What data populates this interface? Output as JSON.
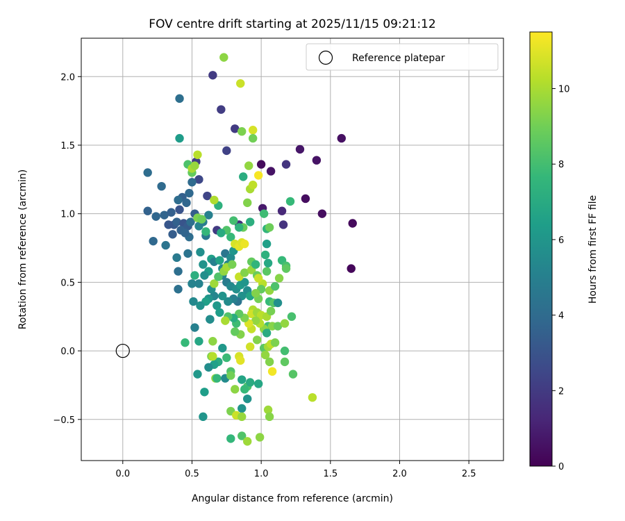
{
  "chart_data": {
    "type": "scatter",
    "title": "FOV centre drift starting at 2025/11/15 09:21:12",
    "xlabel": "Angular distance from reference (arcmin)",
    "ylabel": "Rotation from reference (arcmin)",
    "xlim": [
      -0.3,
      2.75
    ],
    "ylim": [
      -0.8,
      2.28
    ],
    "xticks": [
      0.0,
      0.5,
      1.0,
      1.5,
      2.0,
      2.5
    ],
    "xtick_labels": [
      "0.0",
      "0.5",
      "1.0",
      "1.5",
      "2.0",
      "2.5"
    ],
    "yticks": [
      -0.5,
      0.0,
      0.5,
      1.0,
      1.5,
      2.0
    ],
    "ytick_labels": [
      "−0.5",
      "0.0",
      "0.5",
      "1.0",
      "1.5",
      "2.0"
    ],
    "grid": true,
    "legend": {
      "placement": "top-right",
      "entries": [
        {
          "label": "Reference platepar",
          "marker": "hollow-circle",
          "color": "#000000"
        }
      ]
    },
    "reference_point": {
      "x": 0.0,
      "y": 0.0
    },
    "colorbar": {
      "label": "Hours from first FF file",
      "range": [
        0,
        11.5
      ],
      "ticks": [
        0,
        2,
        4,
        6,
        8,
        10
      ],
      "tick_labels": [
        "0",
        "2",
        "4",
        "6",
        "8",
        "10"
      ],
      "colormap": "viridis",
      "stops": [
        "#440154",
        "#482878",
        "#3e4989",
        "#31688e",
        "#26828e",
        "#1f9e89",
        "#35b779",
        "#6ece58",
        "#b5de2b",
        "#fde725"
      ]
    },
    "points": [
      [
        1.58,
        1.55,
        0.5
      ],
      [
        1.66,
        0.93,
        0.3
      ],
      [
        1.65,
        0.6,
        0.2
      ],
      [
        1.44,
        1.0,
        0.4
      ],
      [
        1.4,
        1.39,
        0.6
      ],
      [
        1.32,
        1.11,
        0.4
      ],
      [
        1.28,
        1.47,
        0.7
      ],
      [
        1.0,
        1.36,
        0.3
      ],
      [
        1.07,
        1.31,
        0.6
      ],
      [
        1.01,
        1.04,
        0.8
      ],
      [
        1.15,
        1.02,
        1.3
      ],
      [
        1.18,
        1.36,
        1.8
      ],
      [
        0.65,
        2.01,
        2.0
      ],
      [
        0.71,
        1.76,
        2.1
      ],
      [
        0.81,
        1.62,
        2.0
      ],
      [
        0.75,
        1.46,
        2.3
      ],
      [
        1.16,
        0.92,
        1.7
      ],
      [
        0.84,
        0.92,
        1.6
      ],
      [
        0.61,
        1.13,
        2.4
      ],
      [
        0.55,
        1.25,
        2.5
      ],
      [
        0.53,
        1.38,
        2.2
      ],
      [
        0.68,
        0.88,
        2.0
      ],
      [
        0.41,
        1.84,
        4.2
      ],
      [
        0.37,
        0.92,
        3.2
      ],
      [
        0.18,
        1.3,
        4.1
      ],
      [
        0.28,
        1.2,
        4.0
      ],
      [
        0.22,
        0.8,
        3.9
      ],
      [
        0.18,
        1.02,
        3.6
      ],
      [
        0.24,
        0.98,
        3.8
      ],
      [
        0.3,
        0.99,
        3.7
      ],
      [
        0.35,
        1.01,
        3.5
      ],
      [
        0.36,
        0.85,
        3.4
      ],
      [
        0.33,
        0.92,
        3.1
      ],
      [
        0.39,
        0.94,
        3.6
      ],
      [
        0.41,
        1.03,
        3.0
      ],
      [
        0.43,
        1.12,
        3.5
      ],
      [
        0.4,
        1.1,
        4.1
      ],
      [
        0.46,
        1.08,
        3.8
      ],
      [
        0.48,
        1.15,
        3.9
      ],
      [
        0.5,
        1.23,
        4.0
      ],
      [
        0.44,
        0.93,
        3.0
      ],
      [
        0.42,
        0.88,
        3.6
      ],
      [
        0.47,
        0.91,
        3.3
      ],
      [
        0.48,
        0.83,
        4.1
      ],
      [
        0.45,
        0.86,
        3.7
      ],
      [
        0.52,
        1.0,
        3.4
      ],
      [
        0.49,
        0.94,
        4.2
      ],
      [
        0.31,
        0.77,
        4.4
      ],
      [
        0.39,
        0.68,
        4.7
      ],
      [
        0.47,
        0.71,
        4.4
      ],
      [
        0.4,
        0.58,
        4.2
      ],
      [
        0.4,
        0.45,
        4.3
      ],
      [
        0.5,
        0.49,
        5.1
      ],
      [
        0.6,
        0.84,
        4.6
      ],
      [
        0.55,
        0.91,
        5.2
      ],
      [
        0.58,
        0.94,
        4.8
      ],
      [
        0.62,
        0.99,
        5.0
      ],
      [
        0.41,
        1.55,
        6.3
      ],
      [
        0.47,
        1.36,
        8.2
      ],
      [
        0.5,
        1.3,
        8.7
      ],
      [
        0.54,
        0.97,
        9.2
      ],
      [
        0.57,
        0.96,
        8.9
      ],
      [
        0.6,
        0.87,
        7.6
      ],
      [
        0.56,
        0.72,
        5.7
      ],
      [
        0.58,
        0.63,
        5.9
      ],
      [
        0.64,
        0.67,
        6.5
      ],
      [
        0.62,
        0.58,
        6.4
      ],
      [
        0.66,
        0.65,
        5.0
      ],
      [
        0.7,
        0.66,
        6.6
      ],
      [
        0.72,
        0.6,
        5.4
      ],
      [
        0.74,
        0.71,
        4.5
      ],
      [
        0.76,
        0.63,
        5.3
      ],
      [
        0.78,
        0.68,
        5.5
      ],
      [
        0.8,
        0.73,
        6.0
      ],
      [
        0.72,
        0.55,
        5.2
      ],
      [
        0.75,
        0.5,
        4.8
      ],
      [
        0.78,
        0.47,
        5.4
      ],
      [
        0.82,
        0.45,
        5.7
      ],
      [
        0.85,
        0.48,
        6.2
      ],
      [
        0.88,
        0.5,
        6.0
      ],
      [
        0.9,
        0.44,
        5.6
      ],
      [
        0.92,
        0.4,
        6.7
      ],
      [
        0.86,
        0.4,
        5.8
      ],
      [
        0.83,
        0.36,
        4.4
      ],
      [
        0.8,
        0.38,
        5.0
      ],
      [
        0.76,
        0.36,
        5.5
      ],
      [
        0.72,
        0.4,
        5.9
      ],
      [
        0.68,
        0.33,
        6.1
      ],
      [
        0.7,
        0.28,
        6.4
      ],
      [
        0.66,
        0.4,
        5.3
      ],
      [
        0.64,
        0.45,
        5.6
      ],
      [
        0.62,
        0.38,
        6.0
      ],
      [
        0.63,
        0.23,
        5.2
      ],
      [
        0.6,
        0.36,
        6.5
      ],
      [
        0.56,
        0.33,
        5.8
      ],
      [
        0.52,
        0.17,
        5.0
      ],
      [
        0.51,
        0.36,
        5.4
      ],
      [
        0.55,
        0.49,
        5.1
      ],
      [
        0.59,
        0.55,
        5.7
      ],
      [
        0.52,
        0.55,
        7.2
      ],
      [
        0.66,
        0.49,
        9.8
      ],
      [
        0.69,
        0.54,
        8.3
      ],
      [
        0.73,
        0.58,
        9.6
      ],
      [
        0.75,
        0.61,
        9.9
      ],
      [
        0.79,
        0.63,
        9.1
      ],
      [
        0.84,
        0.54,
        10.5
      ],
      [
        0.88,
        0.57,
        9.3
      ],
      [
        0.93,
        0.59,
        9.7
      ],
      [
        0.97,
        0.55,
        8.8
      ],
      [
        1.01,
        0.49,
        10.3
      ],
      [
        1.04,
        0.58,
        8.5
      ],
      [
        1.06,
        0.44,
        9.6
      ],
      [
        1.1,
        0.47,
        8.2
      ],
      [
        1.13,
        0.53,
        9.4
      ],
      [
        1.15,
        0.66,
        7.7
      ],
      [
        1.18,
        0.62,
        8.1
      ],
      [
        1.18,
        0.6,
        8.6
      ],
      [
        1.05,
        0.64,
        6.9
      ],
      [
        1.03,
        0.7,
        7.3
      ],
      [
        1.04,
        0.78,
        6.5
      ],
      [
        1.04,
        0.89,
        7.5
      ],
      [
        1.06,
        0.9,
        8.9
      ],
      [
        1.02,
        1.0,
        7.9
      ],
      [
        1.21,
        1.09,
        7.7
      ],
      [
        0.87,
        1.27,
        7.1
      ],
      [
        0.91,
        1.35,
        9.6
      ],
      [
        0.92,
        1.18,
        10.0
      ],
      [
        0.94,
        1.21,
        10.4
      ],
      [
        0.98,
        1.28,
        11.4
      ],
      [
        0.9,
        1.08,
        9.3
      ],
      [
        0.92,
        0.94,
        7.2
      ],
      [
        0.87,
        0.9,
        8.8
      ],
      [
        0.84,
        0.9,
        7.4
      ],
      [
        0.8,
        0.95,
        8.0
      ],
      [
        0.78,
        0.83,
        7.7
      ],
      [
        0.75,
        0.88,
        8.3
      ],
      [
        0.71,
        0.86,
        7.0
      ],
      [
        0.69,
        1.06,
        7.3
      ],
      [
        0.66,
        1.1,
        10.1
      ],
      [
        0.81,
        0.78,
        10.8
      ],
      [
        0.84,
        0.76,
        11.1
      ],
      [
        0.86,
        0.79,
        10.9
      ],
      [
        0.88,
        0.78,
        11.2
      ],
      [
        0.93,
        0.65,
        8.7
      ],
      [
        0.96,
        0.63,
        7.5
      ],
      [
        0.98,
        0.53,
        10.6
      ],
      [
        1.0,
        0.45,
        8.7
      ],
      [
        0.98,
        0.38,
        9.0
      ],
      [
        0.96,
        0.42,
        9.3
      ],
      [
        0.94,
        0.3,
        10.1
      ],
      [
        0.93,
        0.27,
        10.7
      ],
      [
        0.97,
        0.28,
        9.8
      ],
      [
        1.0,
        0.26,
        10.3
      ],
      [
        1.04,
        0.25,
        10.0
      ],
      [
        1.06,
        0.36,
        7.7
      ],
      [
        1.09,
        0.35,
        8.4
      ],
      [
        1.12,
        0.35,
        5.7
      ],
      [
        1.07,
        0.29,
        9.1
      ],
      [
        1.05,
        0.18,
        8.0
      ],
      [
        1.02,
        0.16,
        9.5
      ],
      [
        0.99,
        0.2,
        10.2
      ],
      [
        0.96,
        0.22,
        9.6
      ],
      [
        0.93,
        0.16,
        10.5
      ],
      [
        0.91,
        0.2,
        10.9
      ],
      [
        0.88,
        0.24,
        9.2
      ],
      [
        0.84,
        0.27,
        8.6
      ],
      [
        0.82,
        0.2,
        7.9
      ],
      [
        0.8,
        0.24,
        7.1
      ],
      [
        0.76,
        0.25,
        8.3
      ],
      [
        0.74,
        0.22,
        10.0
      ],
      [
        0.85,
        0.12,
        9.3
      ],
      [
        0.81,
        0.14,
        8.7
      ],
      [
        1.04,
        0.13,
        7.0
      ],
      [
        1.08,
        0.18,
        9.4
      ],
      [
        1.12,
        0.18,
        8.8
      ],
      [
        1.17,
        0.2,
        9.6
      ],
      [
        1.22,
        0.25,
        8.1
      ],
      [
        0.92,
        0.03,
        10.7
      ],
      [
        0.97,
        0.08,
        9.3
      ],
      [
        1.02,
        0.02,
        8.5
      ],
      [
        1.05,
        0.03,
        9.9
      ],
      [
        1.07,
        0.05,
        10.4
      ],
      [
        1.1,
        0.06,
        9.2
      ],
      [
        1.17,
        0.0,
        8.0
      ],
      [
        1.03,
        -0.03,
        9.6
      ],
      [
        1.06,
        -0.08,
        9.3
      ],
      [
        1.08,
        -0.15,
        11.3
      ],
      [
        1.17,
        -0.08,
        8.6
      ],
      [
        1.23,
        -0.17,
        8.4
      ],
      [
        0.72,
        0.02,
        6.1
      ],
      [
        0.75,
        -0.05,
        7.8
      ],
      [
        0.69,
        -0.08,
        7.0
      ],
      [
        0.66,
        -0.1,
        6.5
      ],
      [
        0.64,
        -0.04,
        9.2
      ],
      [
        0.62,
        -0.12,
        5.6
      ],
      [
        0.67,
        -0.2,
        9.6
      ],
      [
        0.68,
        -0.2,
        7.6
      ],
      [
        0.74,
        -0.2,
        5.5
      ],
      [
        0.78,
        -0.15,
        8.3
      ],
      [
        0.78,
        -0.18,
        9.0
      ],
      [
        0.84,
        -0.04,
        10.8
      ],
      [
        0.85,
        -0.07,
        11.0
      ],
      [
        0.86,
        -0.21,
        6.7
      ],
      [
        0.9,
        -0.26,
        8.2
      ],
      [
        0.92,
        -0.23,
        7.0
      ],
      [
        0.98,
        -0.24,
        6.8
      ],
      [
        0.81,
        -0.28,
        9.5
      ],
      [
        0.88,
        -0.28,
        7.7
      ],
      [
        0.9,
        -0.35,
        5.9
      ],
      [
        0.59,
        -0.3,
        6.4
      ],
      [
        0.54,
        -0.17,
        6.1
      ],
      [
        0.45,
        0.06,
        7.7
      ],
      [
        0.55,
        0.07,
        6.8
      ],
      [
        0.63,
        0.23,
        5.6
      ],
      [
        0.65,
        0.07,
        9.5
      ],
      [
        0.65,
        -0.04,
        10.2
      ],
      [
        0.86,
        -0.42,
        5.9
      ],
      [
        0.78,
        -0.44,
        9.2
      ],
      [
        0.82,
        -0.47,
        10.6
      ],
      [
        0.86,
        -0.48,
        9.7
      ],
      [
        0.86,
        -0.62,
        8.3
      ],
      [
        0.9,
        -0.66,
        9.8
      ],
      [
        0.99,
        -0.63,
        9.5
      ],
      [
        0.78,
        -0.64,
        7.6
      ],
      [
        0.58,
        -0.48,
        6.0
      ],
      [
        1.05,
        -0.43,
        9.8
      ],
      [
        1.06,
        -0.48,
        9.4
      ],
      [
        1.37,
        -0.34,
        10.3
      ],
      [
        0.73,
        2.14,
        9.5
      ],
      [
        0.85,
        1.95,
        10.6
      ],
      [
        0.86,
        1.6,
        9.2
      ],
      [
        0.94,
        1.61,
        10.8
      ],
      [
        0.54,
        1.43,
        10.3
      ],
      [
        0.5,
        1.33,
        10.0
      ],
      [
        0.52,
        1.35,
        9.7
      ],
      [
        0.94,
        1.55,
        9.0
      ]
    ]
  }
}
